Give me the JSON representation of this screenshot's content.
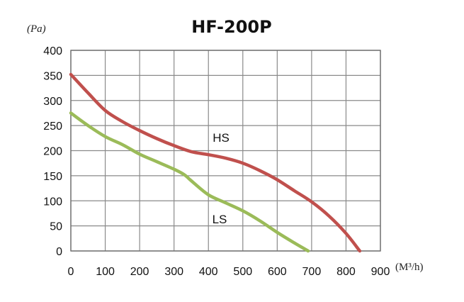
{
  "chart_data": {
    "type": "line",
    "title": "HF-200P",
    "ylabel": "(Pa)",
    "xlabel": "(M³/h)",
    "xlim": [
      0,
      900
    ],
    "ylim": [
      0,
      400
    ],
    "x_ticks": [
      "0",
      "100",
      "200",
      "300",
      "400",
      "500",
      "600",
      "700",
      "800",
      "900"
    ],
    "y_ticks": [
      "0",
      "50",
      "100",
      "150",
      "200",
      "250",
      "300",
      "350",
      "400"
    ],
    "grid": true,
    "series": [
      {
        "name": "HS",
        "color": "#c0504d",
        "x": [
          0,
          50,
          100,
          150,
          200,
          250,
          300,
          350,
          400,
          450,
          500,
          550,
          600,
          650,
          700,
          750,
          800,
          840
        ],
        "y": [
          352,
          315,
          280,
          258,
          240,
          224,
          210,
          198,
          192,
          185,
          175,
          160,
          142,
          120,
          98,
          70,
          35,
          0
        ]
      },
      {
        "name": "LS",
        "color": "#9bbb59",
        "x": [
          0,
          50,
          100,
          150,
          200,
          250,
          300,
          330,
          350,
          400,
          450,
          500,
          550,
          600,
          650,
          690
        ],
        "y": [
          275,
          250,
          228,
          212,
          193,
          178,
          163,
          152,
          140,
          112,
          96,
          80,
          60,
          37,
          16,
          0
        ]
      }
    ]
  }
}
